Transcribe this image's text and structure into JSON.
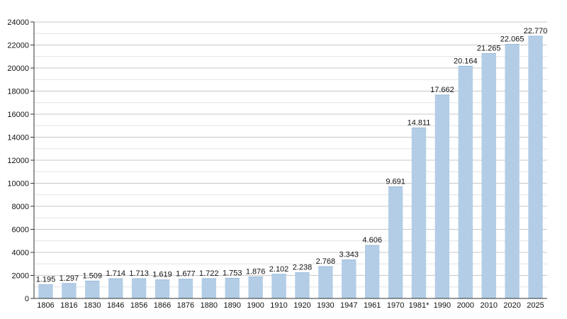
{
  "chart_data": {
    "type": "bar",
    "title": "",
    "xlabel": "",
    "ylabel": "",
    "ylim": [
      0,
      24000
    ],
    "yticks": [
      0,
      2000,
      4000,
      6000,
      8000,
      10000,
      12000,
      14000,
      16000,
      18000,
      20000,
      22000,
      24000
    ],
    "grid": true,
    "legend": "none",
    "bar_color": "#b3cde6",
    "grid_color": "#c8c8c8",
    "categories": [
      "1806",
      "1816",
      "1830",
      "1846",
      "1856",
      "1866",
      "1876",
      "1880",
      "1890",
      "1900",
      "1910",
      "1920",
      "1930",
      "1947",
      "1961",
      "1970",
      "1981*",
      "1990",
      "2000",
      "2010",
      "2020",
      "2025"
    ],
    "values": [
      1195,
      1297,
      1509,
      1714,
      1713,
      1619,
      1677,
      1722,
      1753,
      1876,
      2102,
      2238,
      2768,
      3343,
      4606,
      9691,
      14811,
      17662,
      20164,
      21265,
      22065,
      22770
    ],
    "data_labels": [
      "1.195",
      "1.297",
      "1.509",
      "1.714",
      "1.713",
      "1.619",
      "1.677",
      "1.722",
      "1.753",
      "1.876",
      "2.102",
      "2.238",
      "2.768",
      "3.343",
      "4.606",
      "9.691",
      "14.811",
      "17.662",
      "20.164",
      "21.265",
      "22.065",
      "22.770"
    ]
  }
}
